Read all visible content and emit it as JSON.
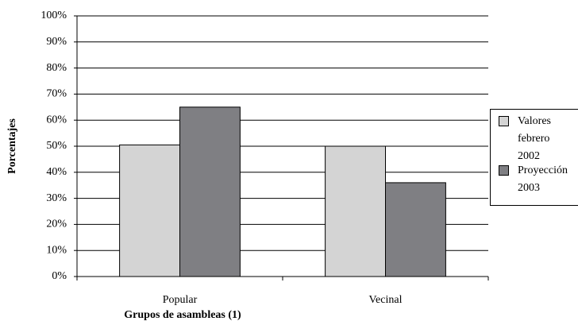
{
  "chart_data": {
    "type": "bar",
    "x_label": "Grupos de asambleas (1)",
    "y_label": "Porcentajes",
    "categories": [
      "Popular",
      "Vecinal"
    ],
    "series": [
      {
        "name": "Valores febrero 2002",
        "color": "#d4d4d4",
        "values": [
          50.5,
          50
        ]
      },
      {
        "name": "Proyección 2003",
        "color": "#7f7f83",
        "values": [
          65,
          36
        ]
      }
    ],
    "ylim": [
      0,
      100
    ],
    "yticks": [
      {
        "value": 0,
        "label": "0%"
      },
      {
        "value": 10,
        "label": "10%"
      },
      {
        "value": 20,
        "label": "20%"
      },
      {
        "value": 30,
        "label": "30%"
      },
      {
        "value": 40,
        "label": "40%"
      },
      {
        "value": 50,
        "label": "50%"
      },
      {
        "value": 60,
        "label": "60%"
      },
      {
        "value": 70,
        "label": "70%"
      },
      {
        "value": 80,
        "label": "80%"
      },
      {
        "value": 90,
        "label": "90%"
      },
      {
        "value": 100,
        "label": "100%"
      }
    ],
    "grid": true,
    "legend": "right"
  }
}
